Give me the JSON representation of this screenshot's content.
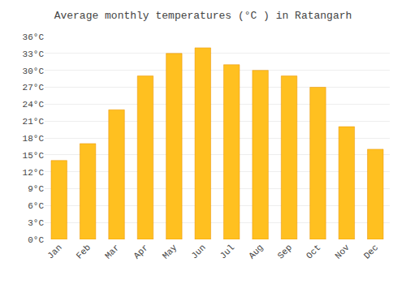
{
  "chart_data": {
    "type": "bar",
    "title": "Average monthly temperatures (°C ) in Ratangarh",
    "categories": [
      "Jan",
      "Feb",
      "Mar",
      "Apr",
      "May",
      "Jun",
      "Jul",
      "Aug",
      "Sep",
      "Oct",
      "Nov",
      "Dec"
    ],
    "values": [
      14,
      17,
      23,
      29,
      33,
      34,
      31,
      30,
      29,
      27,
      20,
      16
    ],
    "color": "#FFC020",
    "ylim": [
      0,
      36
    ],
    "yticks": [
      {
        "value": 0,
        "label": "0°C"
      },
      {
        "value": 3,
        "label": "3°C"
      },
      {
        "value": 6,
        "label": "6°C"
      },
      {
        "value": 9,
        "label": "9°C"
      },
      {
        "value": 12,
        "label": "12°C"
      },
      {
        "value": 15,
        "label": "15°C"
      },
      {
        "value": 18,
        "label": "18°C"
      },
      {
        "value": 21,
        "label": "21°C"
      },
      {
        "value": 24,
        "label": "24°C"
      },
      {
        "value": 27,
        "label": "27°C"
      },
      {
        "value": 30,
        "label": "30°C"
      },
      {
        "value": 33,
        "label": "33°C"
      },
      {
        "value": 36,
        "label": "36°C"
      }
    ],
    "grid": true
  }
}
